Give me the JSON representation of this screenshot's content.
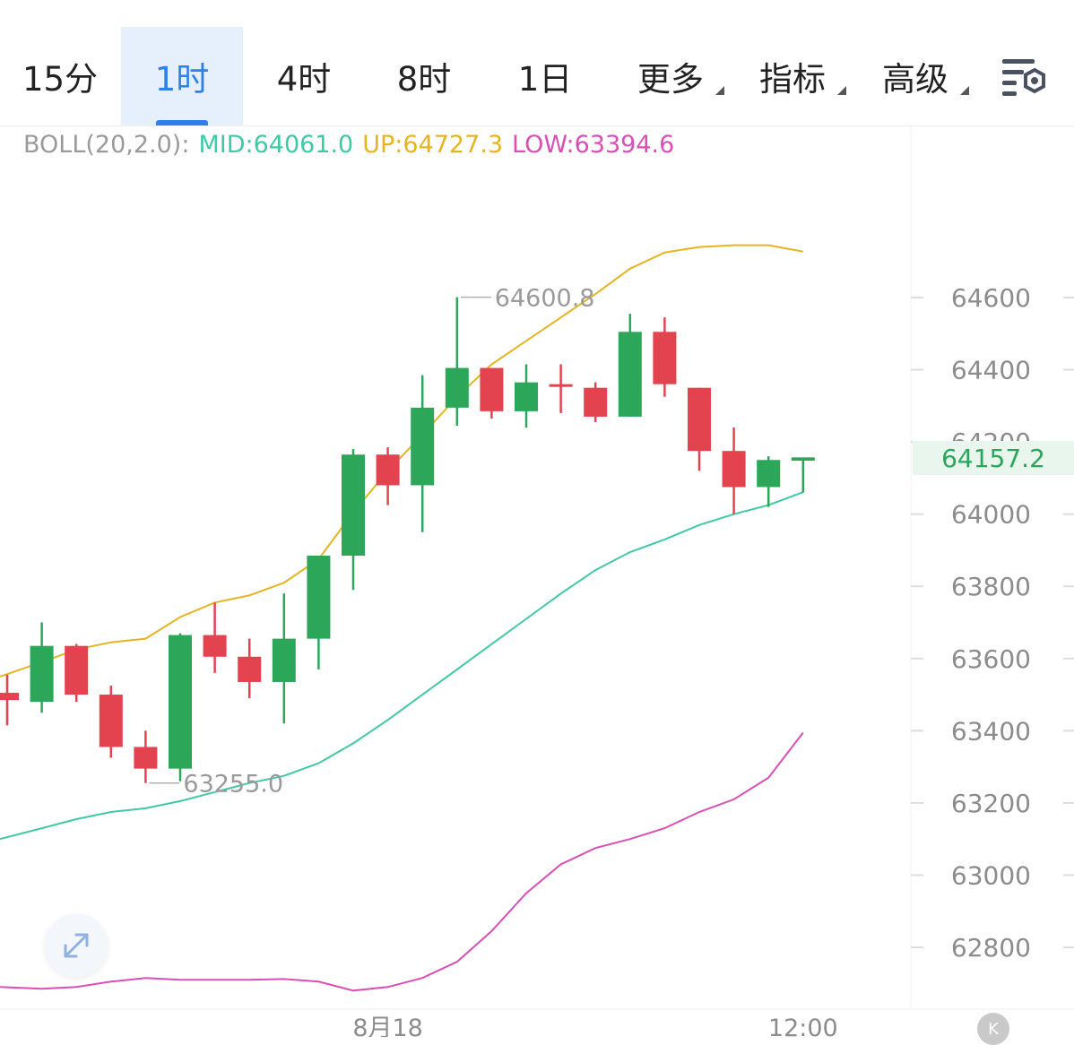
{
  "tabs": [
    {
      "label": "15分"
    },
    {
      "label": "1时"
    },
    {
      "label": "4时"
    },
    {
      "label": "8时"
    },
    {
      "label": "1日"
    },
    {
      "label": "更多"
    },
    {
      "label": "指标"
    },
    {
      "label": "高级"
    }
  ],
  "active_tab": "1时",
  "settings_icon": "chart-settings-icon",
  "expand_icon": "expand-arrows-icon",
  "logo_letter": "K",
  "colors": {
    "up": "#2ca75a",
    "down": "#e3434f",
    "mid": "#3fc9a6",
    "upper": "#e6b422",
    "lower": "#d94fb8",
    "accent": "#2f7fe8"
  },
  "legend": {
    "name": "BOLL(20,2.0):",
    "mid": "MID:64061.0",
    "up": "UP:64727.3",
    "low": "LOW:63394.6"
  },
  "current_price": "64157.2",
  "chart_data": {
    "type": "candlestick",
    "indicator": "BOLL(20,2.0)",
    "x_labels": [
      "8月18",
      "12:00"
    ],
    "y_ticks": [
      64600,
      64400,
      64200,
      64000,
      63800,
      63600,
      63400,
      63200,
      63000,
      62800
    ],
    "y_tick_labels": [
      "64600",
      "64400",
      "64200",
      "64000",
      "63800",
      "63600",
      "63400",
      "63200",
      "63000",
      "62800"
    ],
    "ylim": [
      62660,
      64840
    ],
    "annotations": {
      "high": "64600.8",
      "low": "63255.0"
    },
    "candles": [
      {
        "o": 63505,
        "h": 63555,
        "l": 63415,
        "c": 63485
      },
      {
        "o": 63480,
        "h": 63700,
        "l": 63450,
        "c": 63635
      },
      {
        "o": 63635,
        "h": 63640,
        "l": 63480,
        "c": 63500
      },
      {
        "o": 63500,
        "h": 63525,
        "l": 63325,
        "c": 63355
      },
      {
        "o": 63355,
        "h": 63400,
        "l": 63255,
        "c": 63295
      },
      {
        "o": 63295,
        "h": 63670,
        "l": 63260,
        "c": 63665
      },
      {
        "o": 63665,
        "h": 63755,
        "l": 63560,
        "c": 63605
      },
      {
        "o": 63605,
        "h": 63655,
        "l": 63490,
        "c": 63535
      },
      {
        "o": 63535,
        "h": 63780,
        "l": 63420,
        "c": 63655
      },
      {
        "o": 63655,
        "h": 63885,
        "l": 63570,
        "c": 63885
      },
      {
        "o": 63885,
        "h": 64180,
        "l": 63790,
        "c": 64165
      },
      {
        "o": 64165,
        "h": 64185,
        "l": 64025,
        "c": 64080
      },
      {
        "o": 64080,
        "h": 64385,
        "l": 63950,
        "c": 64295
      },
      {
        "o": 64295,
        "h": 64600.8,
        "l": 64245,
        "c": 64405
      },
      {
        "o": 64405,
        "h": 64405,
        "l": 64265,
        "c": 64285
      },
      {
        "o": 64285,
        "h": 64415,
        "l": 64240,
        "c": 64365
      },
      {
        "o": 64360,
        "h": 64415,
        "l": 64280,
        "c": 64355
      },
      {
        "o": 64350,
        "h": 64365,
        "l": 64255,
        "c": 64270
      },
      {
        "o": 64270,
        "h": 64555,
        "l": 64270,
        "c": 64505
      },
      {
        "o": 64505,
        "h": 64545,
        "l": 64325,
        "c": 64360
      },
      {
        "o": 64350,
        "h": 64350,
        "l": 64120,
        "c": 64175
      },
      {
        "o": 64175,
        "h": 64240,
        "l": 64000,
        "c": 64075
      },
      {
        "o": 64075,
        "h": 64160,
        "l": 64020,
        "c": 64150
      },
      {
        "o": 64148,
        "h": 64155,
        "l": 64060,
        "c": 64157.2
      }
    ],
    "upper": [
      63550,
      63590,
      63625,
      63645,
      63655,
      63715,
      63755,
      63775,
      63810,
      63875,
      64005,
      64120,
      64220,
      64325,
      64415,
      64480,
      64545,
      64610,
      64680,
      64725,
      64740,
      64745,
      64745,
      64727.3
    ],
    "middle": [
      63100,
      63130,
      63155,
      63175,
      63185,
      63205,
      63230,
      63255,
      63275,
      63310,
      63365,
      63430,
      63500,
      63570,
      63640,
      63710,
      63780,
      63845,
      63895,
      63930,
      63970,
      64000,
      64025,
      64061.0
    ],
    "lower": [
      62690,
      62685,
      62690,
      62705,
      62715,
      62710,
      62710,
      62710,
      62712,
      62705,
      62680,
      62690,
      62715,
      62760,
      62845,
      62950,
      63030,
      63075,
      63100,
      63130,
      63175,
      63210,
      63270,
      63394.6
    ]
  }
}
